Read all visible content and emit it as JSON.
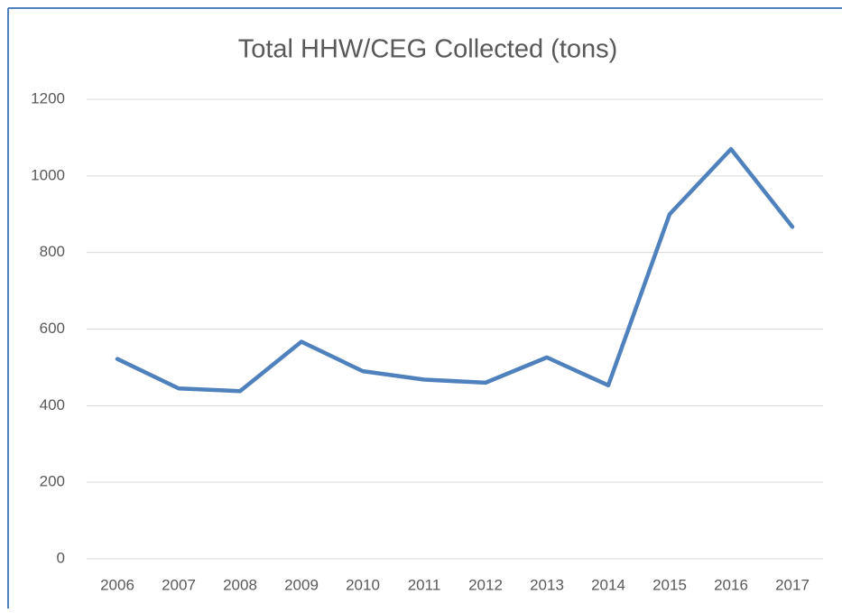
{
  "chart_data": {
    "type": "line",
    "title": "Total HHW/CEG Collected (tons)",
    "categories": [
      "2006",
      "2007",
      "2008",
      "2009",
      "2010",
      "2011",
      "2012",
      "2013",
      "2014",
      "2015",
      "2016",
      "2017"
    ],
    "values": [
      522,
      445,
      438,
      567,
      490,
      468,
      460,
      526,
      453,
      900,
      1070,
      867
    ],
    "color": "#4f81bd",
    "ylim": [
      0,
      1200
    ],
    "yticks": [
      0,
      200,
      400,
      600,
      800,
      1000,
      1200
    ],
    "grid": true
  }
}
